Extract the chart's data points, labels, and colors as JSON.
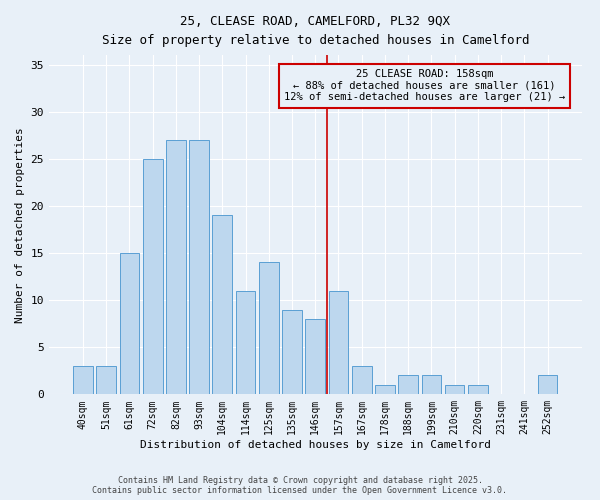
{
  "title_line1": "25, CLEASE ROAD, CAMELFORD, PL32 9QX",
  "title_line2": "Size of property relative to detached houses in Camelford",
  "xlabel": "Distribution of detached houses by size in Camelford",
  "ylabel": "Number of detached properties",
  "categories": [
    "40sqm",
    "51sqm",
    "61sqm",
    "72sqm",
    "82sqm",
    "93sqm",
    "104sqm",
    "114sqm",
    "125sqm",
    "135sqm",
    "146sqm",
    "157sqm",
    "167sqm",
    "178sqm",
    "188sqm",
    "199sqm",
    "210sqm",
    "220sqm",
    "231sqm",
    "241sqm",
    "252sqm"
  ],
  "values": [
    3,
    3,
    15,
    25,
    27,
    27,
    19,
    11,
    14,
    9,
    8,
    11,
    3,
    1,
    2,
    2,
    1,
    1,
    0,
    0,
    2
  ],
  "bar_color": "#bdd7ee",
  "bar_edge_color": "#5a9fd4",
  "vline_x": 10.5,
  "vline_color": "#cc0000",
  "annotation_line1": "25 CLEASE ROAD: 158sqm",
  "annotation_line2": "← 88% of detached houses are smaller (161)",
  "annotation_line3": "12% of semi-detached houses are larger (21) →",
  "ylim": [
    0,
    36
  ],
  "yticks": [
    0,
    5,
    10,
    15,
    20,
    25,
    30,
    35
  ],
  "background_color": "#e8f0f8",
  "footer_line1": "Contains HM Land Registry data © Crown copyright and database right 2025.",
  "footer_line2": "Contains public sector information licensed under the Open Government Licence v3.0."
}
